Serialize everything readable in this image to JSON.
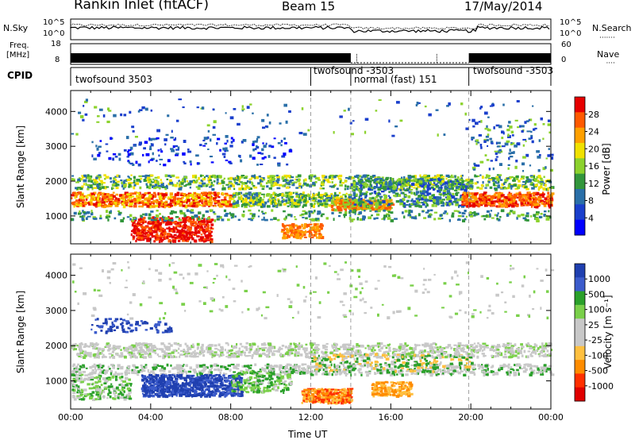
{
  "header": {
    "station": "Rankin Inlet (fitACF)",
    "beam": "Beam 15",
    "date": "17/May/2014"
  },
  "noise": {
    "left_label": "N.Sky",
    "right_label": "N.Search",
    "left_ticks": [
      "10^5",
      "10^0"
    ],
    "right_ticks": [
      "10^5",
      "10^0"
    ]
  },
  "freq": {
    "label_line1": "Freq.",
    "label_line2": "[MHz]",
    "left_ticks": [
      "18",
      "8"
    ],
    "right_ticks": [
      "60",
      "0"
    ],
    "right_label": "Nave"
  },
  "cpid": {
    "label": "CPID",
    "segments": [
      {
        "text": "twofsound 3503",
        "start": 0
      },
      {
        "text": "twofsound -3503",
        "start": 12.0
      },
      {
        "text": "normal (fast) 151",
        "start": 14.0
      },
      {
        "text": "twofsound -3503",
        "start": 19.9
      }
    ]
  },
  "chart_data": [
    {
      "type": "heatmap",
      "name": "power",
      "ylabel": "Slant Range [km]",
      "xlim": [
        0,
        24
      ],
      "ylim": [
        200,
        4600
      ],
      "yticks": [
        "1000",
        "2000",
        "3000",
        "4000"
      ],
      "colorbar_label": "Power [dB]",
      "colorbar_ticks": [
        "28",
        "24",
        "20",
        "16",
        "12",
        "8",
        "4"
      ],
      "colorbar_colors": [
        "#e60000",
        "#ff5a00",
        "#ffa000",
        "#f0e100",
        "#8cd22d",
        "#32963c",
        "#2a6fa8",
        "#1a3fcc",
        "#0000ff"
      ]
    },
    {
      "type": "heatmap",
      "name": "velocity",
      "ylabel": "Slant Range [km]",
      "xlabel": "Time UT",
      "xlim": [
        0,
        24
      ],
      "ylim": [
        200,
        4600
      ],
      "xticks": [
        "00:00",
        "04:00",
        "08:00",
        "12:00",
        "16:00",
        "20:00",
        "00:00"
      ],
      "yticks": [
        "1000",
        "2000",
        "3000",
        "4000"
      ],
      "colorbar_label": "Velocity [m s⁻¹]",
      "colorbar_ticks": [
        "1000",
        "500",
        "100",
        "25",
        "-25",
        "-100",
        "-500",
        "-1000"
      ],
      "colorbar_colors": [
        "#2040b0",
        "#3c5ccc",
        "#2aa02a",
        "#7ad04a",
        "#c8c8c8",
        "#c8c8c8",
        "#ffc040",
        "#ff8c00",
        "#ff3000",
        "#e00000"
      ]
    }
  ]
}
